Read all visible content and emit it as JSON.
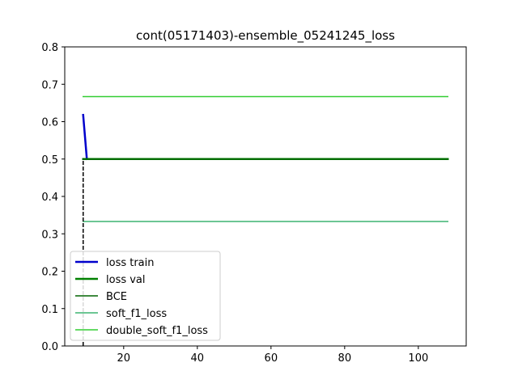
{
  "chart_data": {
    "type": "line",
    "title": "cont(05171403)-ensemble_05241245_loss",
    "xlabel": "",
    "ylabel": "",
    "xlim": [
      4,
      113
    ],
    "ylim": [
      0.0,
      0.8
    ],
    "x_ticks": [
      20,
      40,
      60,
      80,
      100
    ],
    "y_ticks": [
      0.0,
      0.1,
      0.2,
      0.3,
      0.4,
      0.5,
      0.6,
      0.7,
      0.8
    ],
    "grid": false,
    "legend_position": "lower-left",
    "series": [
      {
        "name": "loss train",
        "color": "#0000cc",
        "width": 2.5,
        "x": [
          9,
          10
        ],
        "y": [
          0.618,
          0.5
        ]
      },
      {
        "name": "loss val",
        "color": "#008000",
        "width": 2.5,
        "x": [
          9,
          108
        ],
        "y": [
          0.5,
          0.5
        ]
      },
      {
        "name": "BCE",
        "color": "#006400",
        "width": 1.5,
        "x": [
          9,
          108
        ],
        "y": [
          0.5,
          0.5
        ]
      },
      {
        "name": "soft_f1_loss",
        "color": "#3cb371",
        "width": 1.5,
        "x": [
          9,
          108
        ],
        "y": [
          0.333,
          0.333
        ]
      },
      {
        "name": "double_soft_f1_loss",
        "color": "#32cd32",
        "width": 1.5,
        "x": [
          9,
          108
        ],
        "y": [
          0.667,
          0.667
        ]
      }
    ],
    "annotations": [
      {
        "kind": "vertical-dashed-line",
        "x": 9,
        "y_from": 0.0,
        "y_to": 0.5,
        "color": "#000000"
      }
    ]
  }
}
